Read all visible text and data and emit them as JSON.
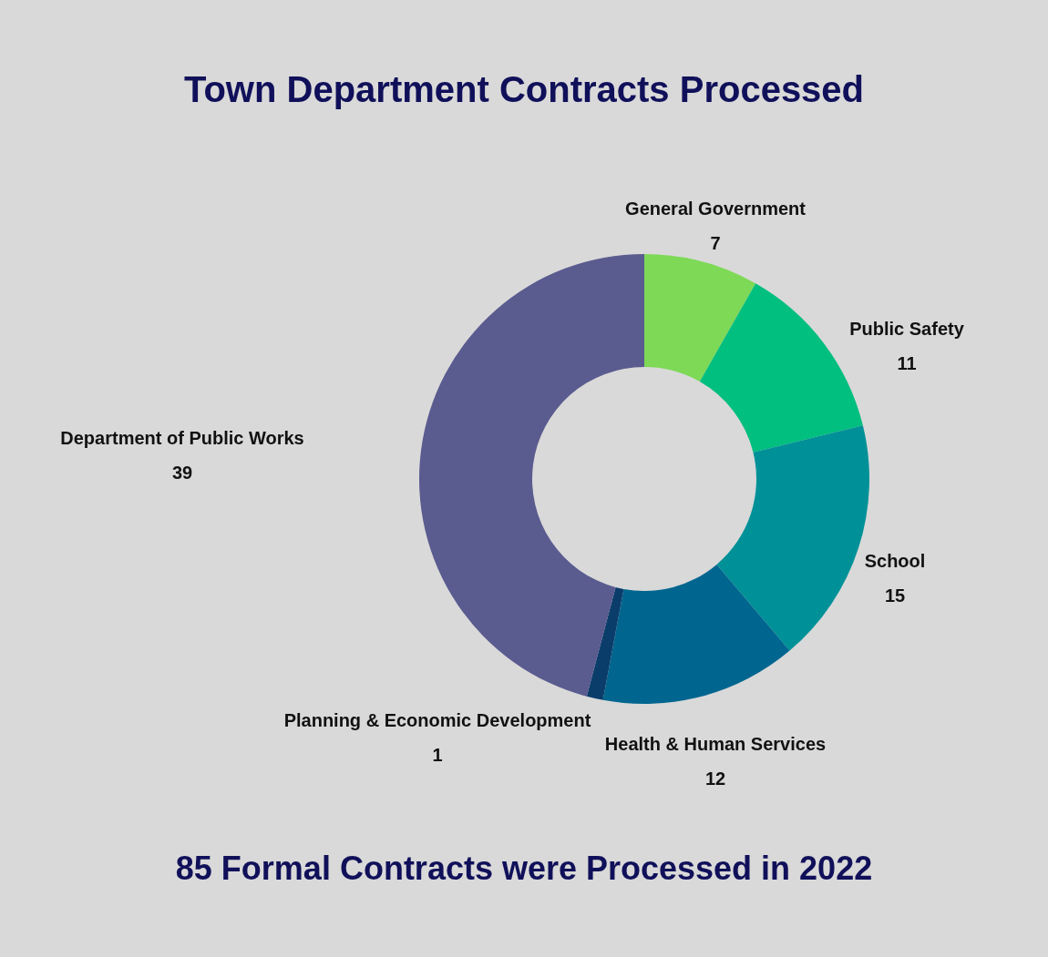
{
  "chart_data": {
    "type": "donut",
    "title": "Town Department Contracts Processed",
    "categories": [
      "General Government",
      "Public Safety",
      "School",
      "Health & Human Services",
      "Planning & Economic Development",
      "Department of Public Works"
    ],
    "values": [
      7,
      11,
      15,
      12,
      1,
      39
    ],
    "colors": [
      "#7ed957",
      "#00bf7f",
      "#009198",
      "#00668f",
      "#0b3d6b",
      "#5a5b8f"
    ],
    "data_labels": true,
    "annotations": [
      "85 Formal Contracts were Processed in 2022"
    ]
  }
}
